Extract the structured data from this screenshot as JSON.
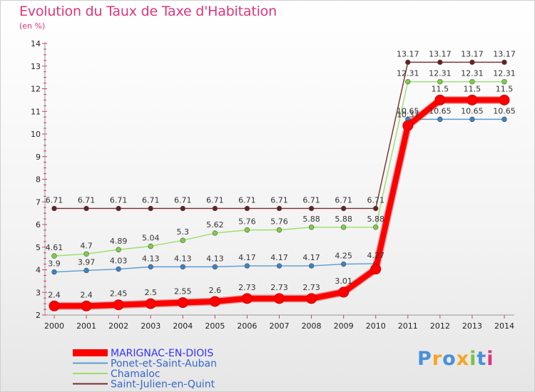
{
  "title": "Evolution du Taux de Taxe d'Habitation",
  "subtitle": "(en %)",
  "logo": "Proxiti",
  "colors": {
    "title": "#e0347a",
    "axis_ticks": "#e0347a"
  },
  "chart_data": {
    "type": "line",
    "x": [
      2000,
      2001,
      2002,
      2003,
      2004,
      2005,
      2006,
      2007,
      2008,
      2009,
      2010,
      2011,
      2012,
      2013,
      2014
    ],
    "ylim": [
      2,
      14
    ],
    "yticks": [
      2,
      3,
      4,
      5,
      6,
      7,
      8,
      9,
      10,
      11,
      12,
      13,
      14
    ],
    "grid": false,
    "legend_position": "bottom-left",
    "series": [
      {
        "name": "Saint-Julien-en-Quint",
        "color": "#7b2c2c",
        "point_color": "#6a1f1f",
        "emphasis": false,
        "values": [
          6.71,
          6.71,
          6.71,
          6.71,
          6.71,
          6.71,
          6.71,
          6.71,
          6.71,
          6.71,
          6.71,
          13.17,
          13.17,
          13.17,
          13.17
        ],
        "labels": [
          "6.71",
          "6.71",
          "6.71",
          "6.71",
          "6.71",
          "6.71",
          "6.71",
          "6.71",
          "6.71",
          "6.71",
          "6.71",
          "13.17",
          "13.17",
          "13.17",
          "13.17"
        ]
      },
      {
        "name": "Chamaloc",
        "color": "#99e06a",
        "point_color": "#7ccf45",
        "emphasis": false,
        "values": [
          4.61,
          4.7,
          4.89,
          5.04,
          5.3,
          5.62,
          5.76,
          5.76,
          5.88,
          5.88,
          5.88,
          12.31,
          12.31,
          12.31,
          12.31
        ],
        "labels": [
          "4.61",
          "4.7",
          "4.89",
          "5.04",
          "5.3",
          "5.62",
          "5.76",
          "5.76",
          "5.88",
          "5.88",
          "5.88",
          "12.31",
          "12.31",
          "12.31",
          "12.31"
        ]
      },
      {
        "name": "Ponet-et-Saint-Auban",
        "color": "#5b9bd5",
        "point_color": "#3a82c4",
        "emphasis": false,
        "values": [
          3.9,
          3.97,
          4.03,
          4.13,
          4.13,
          4.13,
          4.17,
          4.17,
          4.17,
          4.25,
          4.27,
          10.65,
          10.65,
          10.65,
          10.65
        ],
        "labels": [
          "3.9",
          "3.97",
          "4.03",
          "4.13",
          "4.13",
          "4.13",
          "4.17",
          "4.17",
          "4.17",
          "4.25",
          "4.27",
          "10.65",
          "10.65",
          "10.65",
          "10.65"
        ]
      },
      {
        "name": "MARIGNAC-EN-DIOIS",
        "color": "#ff0000",
        "point_color": "#ff0000",
        "emphasis": true,
        "values": [
          2.4,
          2.4,
          2.45,
          2.5,
          2.55,
          2.6,
          2.73,
          2.73,
          2.73,
          3.01,
          4.03,
          10.37,
          11.5,
          11.5,
          11.5
        ],
        "labels": [
          "2.4",
          "2.4",
          "2.45",
          "2.5",
          "2.55",
          "2.6",
          "2.73",
          "2.73",
          "2.73",
          "3.01",
          "",
          "10.37",
          "11.5",
          "11.5",
          "11.5"
        ]
      }
    ],
    "legend_order": [
      "MARIGNAC-EN-DIOIS",
      "Ponet-et-Saint-Auban",
      "Chamaloc",
      "Saint-Julien-en-Quint"
    ],
    "legend_colors": [
      "#3333ff",
      "#3366cc",
      "#3366cc",
      "#3366cc"
    ]
  }
}
